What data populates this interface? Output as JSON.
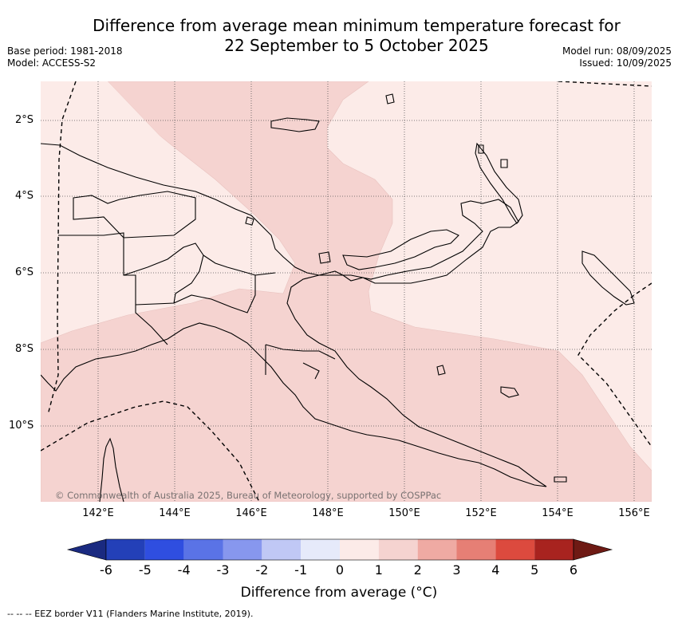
{
  "title_line1": "Difference from average mean minimum temperature forecast for",
  "title_line2": "22 September to 5 October 2025",
  "base_period": "Base period: 1981-2018",
  "model": "Model: ACCESS-S2",
  "model_run": "Model run: 08/09/2025",
  "issued": "Issued: 10/09/2025",
  "lat_labels": [
    "2°S",
    "4°S",
    "6°S",
    "8°S",
    "10°S"
  ],
  "lon_labels": [
    "142°E",
    "144°E",
    "146°E",
    "148°E",
    "150°E",
    "152°E",
    "154°E",
    "156°E"
  ],
  "copyright": "© Commonwealth of Australia 2025, Bureau of Meteorology, supported by COSPPac",
  "colorbar": {
    "title": "Difference from average (°C)",
    "ticks": [
      "-6",
      "-5",
      "-4",
      "-3",
      "-2",
      "-1",
      "0",
      "1",
      "2",
      "3",
      "4",
      "5",
      "6"
    ],
    "colors": [
      "#1a2a80",
      "#2340b8",
      "#2f4ee0",
      "#5a73e6",
      "#8797ee",
      "#c0c8f5",
      "#e6eafa",
      "#fcebe8",
      "#f5d3d0",
      "#efaaa3",
      "#e67f75",
      "#dc4a3e",
      "#a8231f",
      "#6e1a14"
    ]
  },
  "legend_footer": "--  --  -- EEZ border V11 (Flanders Marine Institute, 2019)."
}
